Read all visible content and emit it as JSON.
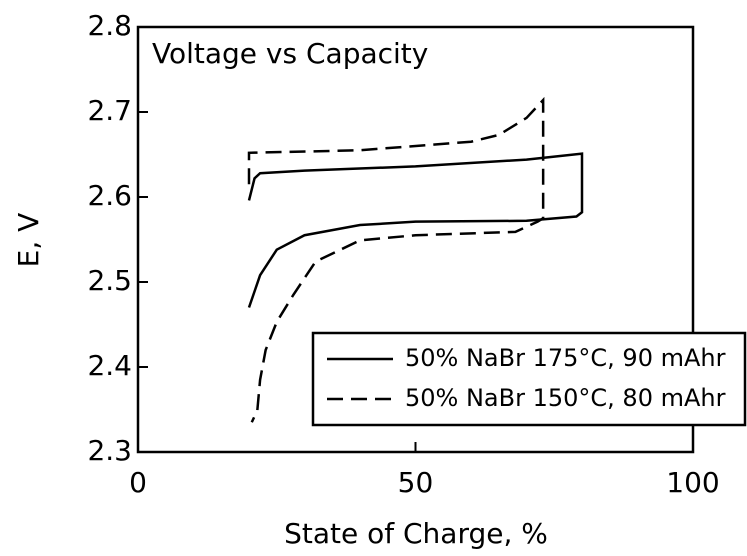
{
  "chart_data": {
    "type": "line",
    "title": "Voltage vs Capacity",
    "xlabel": "State of Charge, %",
    "ylabel": "E, V",
    "xlim": [
      0,
      100
    ],
    "xticks": [
      0,
      50,
      100
    ],
    "ylim": [
      2.3,
      2.8
    ],
    "yticks": [
      2.3,
      2.4,
      2.5,
      2.6,
      2.7,
      2.8
    ],
    "legend": "lower right",
    "series": [
      {
        "name": "50% NaBr 175°C, 90 mAhr",
        "color": "#000000",
        "linestyle": "solid",
        "x": [
          20,
          21,
          22,
          30,
          50,
          70,
          80,
          80,
          79,
          70,
          50,
          40,
          30,
          25,
          22,
          20
        ],
        "values": [
          2.596,
          2.622,
          2.628,
          2.631,
          2.636,
          2.644,
          2.651,
          2.582,
          2.577,
          2.572,
          2.571,
          2.567,
          2.555,
          2.538,
          2.508,
          2.47
        ]
      },
      {
        "name": "50% NaBr 150°C, 80 mAhr",
        "color": "#000000",
        "linestyle": "dashed",
        "x": [
          20,
          20,
          40,
          60,
          65,
          70,
          73,
          73,
          72,
          68,
          50,
          40,
          32,
          28,
          25,
          23,
          22,
          21.5,
          20.5
        ],
        "values": [
          2.615,
          2.652,
          2.655,
          2.665,
          2.673,
          2.693,
          2.714,
          2.575,
          2.571,
          2.559,
          2.555,
          2.549,
          2.524,
          2.485,
          2.453,
          2.42,
          2.385,
          2.349,
          2.335
        ]
      }
    ]
  }
}
